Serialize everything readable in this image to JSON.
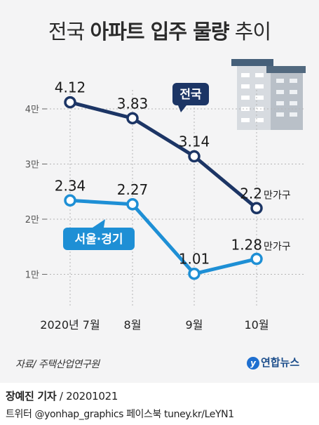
{
  "title_light": "전국",
  "title_bold": "아파트 입주 물량",
  "title_tail": "추이",
  "chart_data": {
    "type": "line",
    "categories": [
      "2020년 7월",
      "8월",
      "9월",
      "10월"
    ],
    "ylim": [
      0.5,
      4.5
    ],
    "yticks": [
      {
        "label": "4만",
        "value": 4
      },
      {
        "label": "3만",
        "value": 3
      },
      {
        "label": "2만",
        "value": 2
      },
      {
        "label": "1만",
        "value": 1
      }
    ],
    "unit_label": "만가구",
    "series": [
      {
        "name": "전국",
        "values": [
          4.12,
          3.83,
          3.14,
          2.2
        ],
        "labels": [
          "4.12",
          "3.83",
          "3.14",
          "2.2"
        ],
        "color": "#1c3565"
      },
      {
        "name": "서울·경기",
        "values": [
          2.34,
          2.27,
          1.01,
          1.28
        ],
        "labels": [
          "2.34",
          "2.27",
          "1.01",
          "1.28"
        ],
        "color": "#1e8fd5"
      }
    ]
  },
  "source": "자료/ 주택산업연구원",
  "logo_text": "연합뉴스",
  "byline_name": "장예진 기자",
  "byline_date": " / 20201021",
  "social_line": "트위터 @yonhap_graphics  페이스북 tuney.kr/LeYN1"
}
